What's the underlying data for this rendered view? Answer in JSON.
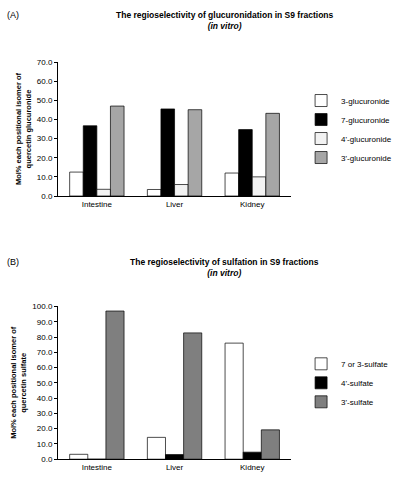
{
  "chart_data": [
    {
      "type": "bar",
      "title": "The regioselectivity of glucuronidation in S9 fractions",
      "subtitle": "(in vitro)",
      "annotations": [
        "(A)"
      ],
      "y_label": "Mol% each positional isomer of quercetin glucuronide",
      "categories": [
        "Intestine",
        "Liver",
        "Kidney"
      ],
      "series": [
        {
          "name": "3-glucuronide",
          "color": "#ffffff",
          "values": [
            12.5,
            3.4,
            12.0
          ]
        },
        {
          "name": "7-glucuronide",
          "color": "#000000",
          "values": [
            36.7,
            45.5,
            34.7
          ]
        },
        {
          "name": "4'-glucuronide",
          "color": "#f2f2f2",
          "values": [
            3.5,
            6.0,
            10.0
          ]
        },
        {
          "name": "3'-glucuronide",
          "color": "#a6a6a6",
          "values": [
            47.0,
            45.1,
            43.2
          ]
        }
      ],
      "ylim": [
        0,
        70
      ],
      "yticks": [
        {
          "value": 0,
          "label": "0.0"
        },
        {
          "value": 10,
          "label": "10.0"
        },
        {
          "value": 20,
          "label": "20.0"
        },
        {
          "value": 30,
          "label": "30.0"
        },
        {
          "value": 40,
          "label": "40.0"
        },
        {
          "value": 50,
          "label": "50.0"
        },
        {
          "value": 60,
          "label": "60.0"
        },
        {
          "value": 70,
          "label": "70.0"
        }
      ],
      "grid": false,
      "legend": "right"
    },
    {
      "type": "bar",
      "title": "The regioselectivity of sulfation in S9 fractions",
      "subtitle": "(in vitro)",
      "annotations": [
        "(B)"
      ],
      "y_label": "Mol% each positional isomer of quercetin sulfate",
      "categories": [
        "Intestine",
        "Liver",
        "Kidney"
      ],
      "series": [
        {
          "name": "7 or 3-sulfate",
          "color": "#ffffff",
          "values": [
            3.2,
            14.3,
            76.0
          ]
        },
        {
          "name": "4'-sulfate",
          "color": "#000000",
          "values": [
            0,
            3.0,
            4.6
          ]
        },
        {
          "name": "3'-sulfate",
          "color": "#7f7f7f",
          "values": [
            97.0,
            82.7,
            19.2
          ]
        }
      ],
      "ylim": [
        0,
        100
      ],
      "yticks": [
        {
          "value": 0,
          "label": "0.0"
        },
        {
          "value": 10,
          "label": "10.0"
        },
        {
          "value": 20,
          "label": "20.0"
        },
        {
          "value": 30,
          "label": "30.0"
        },
        {
          "value": 40,
          "label": "40.0"
        },
        {
          "value": 50,
          "label": "50.0"
        },
        {
          "value": 60,
          "label": "60.0"
        },
        {
          "value": 70,
          "label": "70.0"
        },
        {
          "value": 80,
          "label": "80.0"
        },
        {
          "value": 90,
          "label": "90.0"
        },
        {
          "value": 100,
          "label": "100.0"
        }
      ],
      "grid": false,
      "legend": "right"
    }
  ]
}
